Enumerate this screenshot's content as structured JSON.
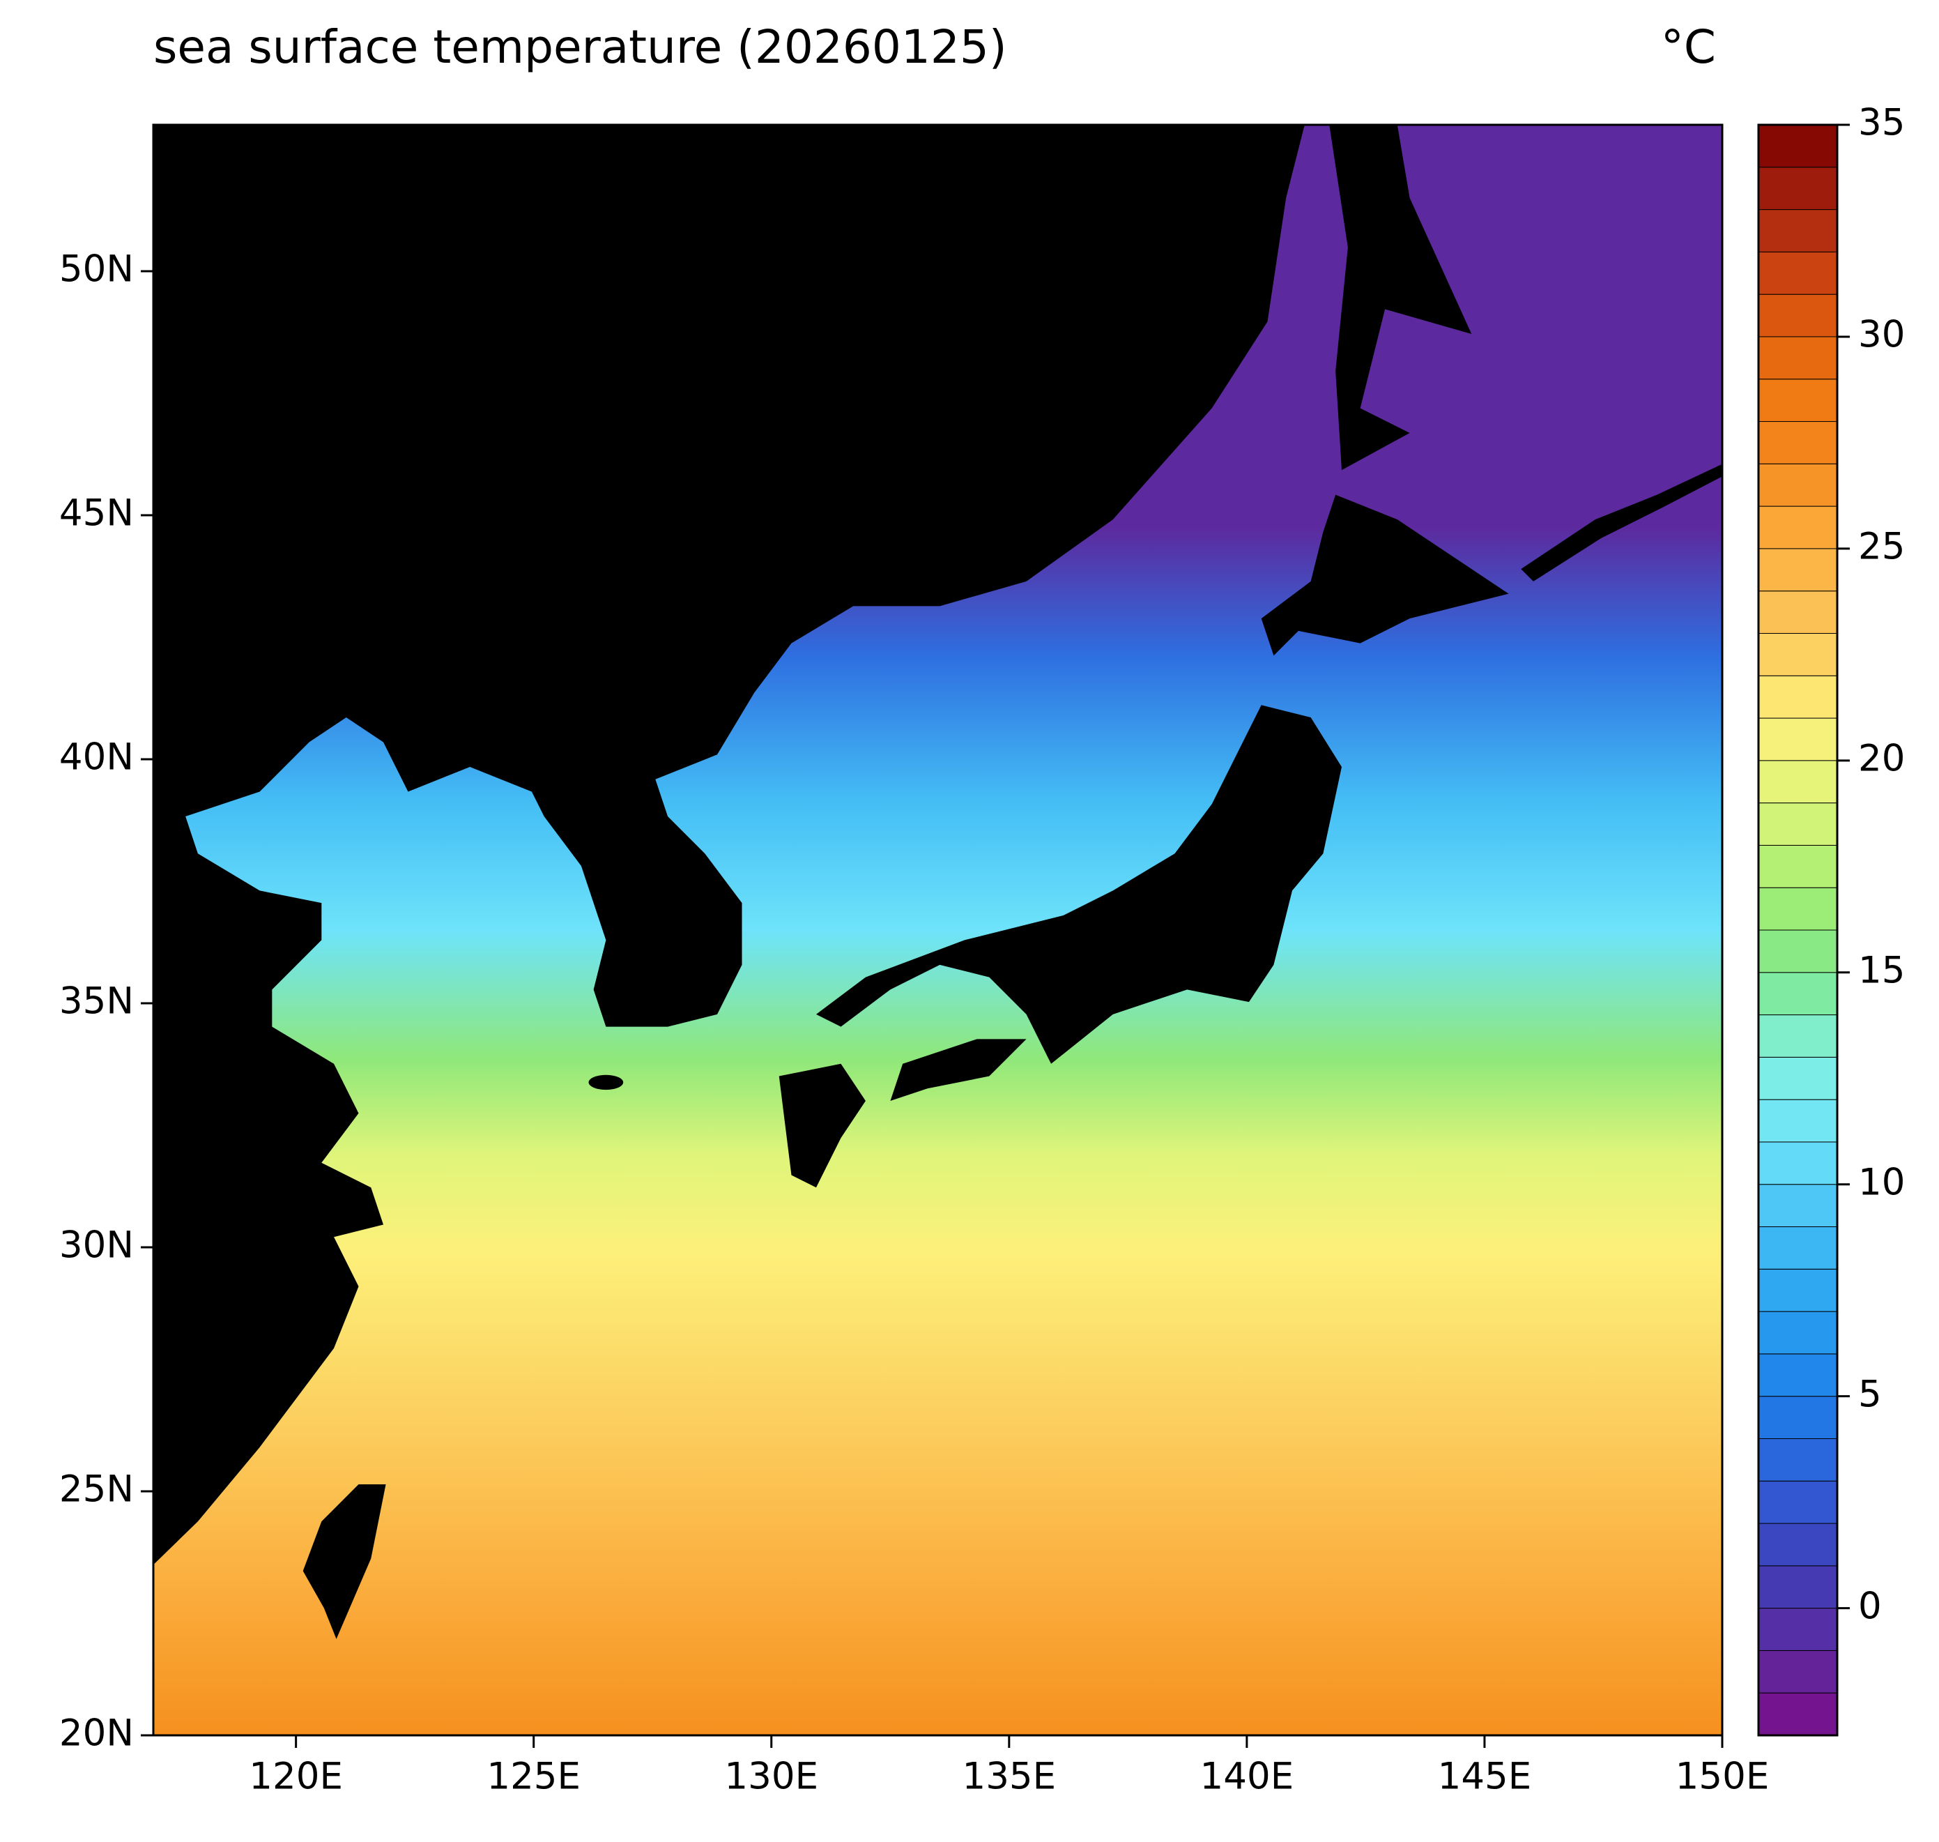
{
  "chart_data": {
    "type": "map",
    "title": "sea surface temperature (20260125)",
    "colorbar_label": "°C",
    "xlim": [
      117,
      150
    ],
    "ylim": [
      20,
      53
    ],
    "xticks": [
      {
        "value": 120,
        "label": "120E"
      },
      {
        "value": 125,
        "label": "125E"
      },
      {
        "value": 130,
        "label": "130E"
      },
      {
        "value": 135,
        "label": "135E"
      },
      {
        "value": 140,
        "label": "140E"
      },
      {
        "value": 145,
        "label": "145E"
      },
      {
        "value": 150,
        "label": "150E"
      }
    ],
    "yticks": [
      {
        "value": 20,
        "label": "20N"
      },
      {
        "value": 25,
        "label": "25N"
      },
      {
        "value": 30,
        "label": "30N"
      },
      {
        "value": 35,
        "label": "35N"
      },
      {
        "value": 40,
        "label": "40N"
      },
      {
        "value": 45,
        "label": "45N"
      },
      {
        "value": 50,
        "label": "50N"
      }
    ],
    "clim": [
      -3,
      35
    ],
    "cticks": [
      0,
      5,
      10,
      15,
      20,
      25,
      30,
      35
    ],
    "level_step": 1,
    "colors": [
      "#7d0d8a",
      "#5c2a9e",
      "#3f3fb8",
      "#2e5fd8",
      "#1f7fe8",
      "#28a0f0",
      "#44bdf5",
      "#6ee3fa",
      "#80f0e0",
      "#7fe88c",
      "#a6ee70",
      "#dff57a",
      "#fdf07a",
      "#fcc65a",
      "#fbb040",
      "#f58a20",
      "#ee7410",
      "#d54d10",
      "#a82510",
      "#7a0000"
    ]
  }
}
